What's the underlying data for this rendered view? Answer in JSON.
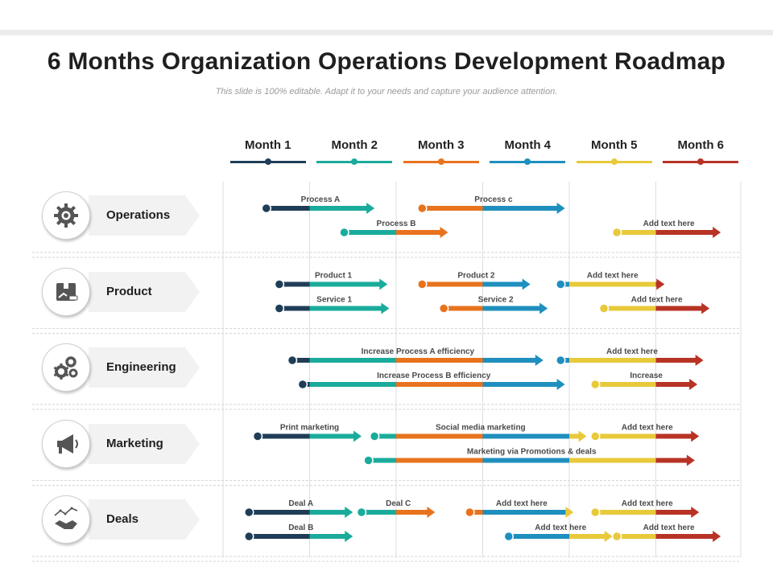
{
  "title": "6 Months Organization Operations Development Roadmap",
  "subtitle": "This slide is 100% editable. Adapt it to your needs and capture your audience attention.",
  "months": [
    {
      "label": "Month 1",
      "color": "#1f3d57"
    },
    {
      "label": "Month 2",
      "color": "#1aab9b"
    },
    {
      "label": "Month 3",
      "color": "#e8731e"
    },
    {
      "label": "Month 4",
      "color": "#1e8fbf"
    },
    {
      "label": "Month 5",
      "color": "#e8c93a"
    },
    {
      "label": "Month 6",
      "color": "#b83325"
    }
  ],
  "rows": [
    {
      "label": "Operations",
      "icon": "gear-icon"
    },
    {
      "label": "Product",
      "icon": "product-box-icon"
    },
    {
      "label": "Engineering",
      "icon": "gears-icon"
    },
    {
      "label": "Marketing",
      "icon": "megaphone-icon"
    },
    {
      "label": "Deals",
      "icon": "handshake-icon"
    }
  ],
  "bars": [
    {
      "row": 0,
      "lane": 0,
      "label": "Process A",
      "start": 0.5,
      "end": 1.75
    },
    {
      "row": 0,
      "lane": 0,
      "label": "Process c",
      "start": 2.3,
      "end": 3.95
    },
    {
      "row": 0,
      "lane": 1,
      "label": "Process B",
      "start": 1.4,
      "end": 2.6
    },
    {
      "row": 0,
      "lane": 1,
      "label": "Add text here",
      "start": 4.55,
      "end": 5.75
    },
    {
      "row": 1,
      "lane": 0,
      "label": "Product 1",
      "start": 0.65,
      "end": 1.9
    },
    {
      "row": 1,
      "lane": 0,
      "label": "Product 2",
      "start": 2.3,
      "end": 3.55
    },
    {
      "row": 1,
      "lane": 0,
      "label": "Add text here",
      "start": 3.9,
      "end": 5.1
    },
    {
      "row": 1,
      "lane": 1,
      "label": "Service 1",
      "start": 0.65,
      "end": 1.92
    },
    {
      "row": 1,
      "lane": 1,
      "label": "Service 2",
      "start": 2.55,
      "end": 3.75
    },
    {
      "row": 1,
      "lane": 1,
      "label": "Add text here",
      "start": 4.4,
      "end": 5.62
    },
    {
      "row": 2,
      "lane": 0,
      "label": "Increase Process A efficiency",
      "start": 0.8,
      "end": 3.7
    },
    {
      "row": 2,
      "lane": 0,
      "label": "Add text here",
      "start": 3.9,
      "end": 5.55
    },
    {
      "row": 2,
      "lane": 1,
      "label": "Increase Process B efficiency",
      "start": 0.92,
      "end": 3.95
    },
    {
      "row": 2,
      "lane": 1,
      "label": "Increase",
      "start": 4.3,
      "end": 5.48
    },
    {
      "row": 3,
      "lane": 0,
      "label": "Print marketing",
      "start": 0.4,
      "end": 1.6
    },
    {
      "row": 3,
      "lane": 0,
      "label": "Social media marketing",
      "start": 1.75,
      "end": 4.2
    },
    {
      "row": 3,
      "lane": 0,
      "label": "Add text here",
      "start": 4.3,
      "end": 5.5
    },
    {
      "row": 3,
      "lane": 1,
      "label": "Marketing via Promotions & deals",
      "start": 1.68,
      "end": 5.45
    },
    {
      "row": 4,
      "lane": 0,
      "label": "Deal A",
      "start": 0.3,
      "end": 1.5
    },
    {
      "row": 4,
      "lane": 0,
      "label": "Deal C",
      "start": 1.6,
      "end": 2.45
    },
    {
      "row": 4,
      "lane": 0,
      "label": "Add text here",
      "start": 2.85,
      "end": 4.05
    },
    {
      "row": 4,
      "lane": 0,
      "label": "Add text here",
      "start": 4.3,
      "end": 5.5
    },
    {
      "row": 4,
      "lane": 1,
      "label": "Deal B",
      "start": 0.3,
      "end": 1.5
    },
    {
      "row": 4,
      "lane": 1,
      "label": "Add text here",
      "start": 3.3,
      "end": 4.5
    },
    {
      "row": 4,
      "lane": 1,
      "label": "Add text here",
      "start": 4.55,
      "end": 5.75
    }
  ]
}
